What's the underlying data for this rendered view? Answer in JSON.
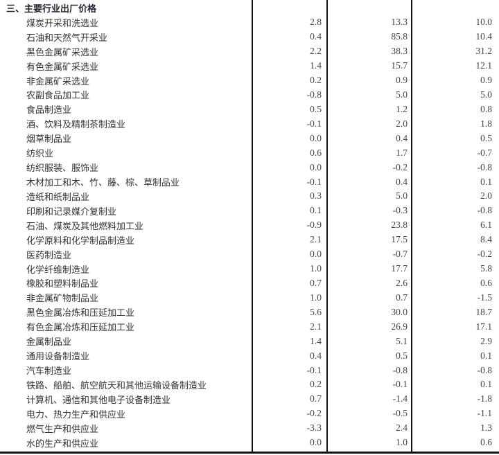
{
  "section_title": "三、主要行业出厂价格",
  "rows": [
    {
      "name": "煤炭开采和洗选业",
      "v1": "2.8",
      "v2": "13.3",
      "v3": "10.0"
    },
    {
      "name": "石油和天然气开采业",
      "v1": "0.4",
      "v2": "85.8",
      "v3": "10.4"
    },
    {
      "name": "黑色金属矿采选业",
      "v1": "2.2",
      "v2": "38.3",
      "v3": "31.2"
    },
    {
      "name": "有色金属矿采选业",
      "v1": "1.4",
      "v2": "15.7",
      "v3": "12.1"
    },
    {
      "name": "非金属矿采选业",
      "v1": "0.2",
      "v2": "0.9",
      "v3": "0.9"
    },
    {
      "name": "农副食品加工业",
      "v1": "-0.8",
      "v2": "5.0",
      "v3": "5.0"
    },
    {
      "name": "食品制造业",
      "v1": "0.5",
      "v2": "1.2",
      "v3": "0.8"
    },
    {
      "name": "酒、饮料及精制茶制造业",
      "v1": "-0.1",
      "v2": "2.0",
      "v3": "1.8"
    },
    {
      "name": "烟草制品业",
      "v1": "0.0",
      "v2": "0.4",
      "v3": "0.5"
    },
    {
      "name": "纺织业",
      "v1": "0.6",
      "v2": "1.7",
      "v3": "-0.7"
    },
    {
      "name": "纺织服装、服饰业",
      "v1": "0.0",
      "v2": "-0.2",
      "v3": "-0.8"
    },
    {
      "name": "木材加工和木、竹、藤、棕、草制品业",
      "v1": "-0.1",
      "v2": "0.4",
      "v3": "0.1"
    },
    {
      "name": "造纸和纸制品业",
      "v1": "0.3",
      "v2": "5.0",
      "v3": "2.0"
    },
    {
      "name": "印刷和记录媒介复制业",
      "v1": "0.1",
      "v2": "-0.3",
      "v3": "-0.8"
    },
    {
      "name": "石油、煤炭及其他燃料加工业",
      "v1": "-0.9",
      "v2": "23.8",
      "v3": "6.1"
    },
    {
      "name": "化学原料和化学制品制造业",
      "v1": "2.1",
      "v2": "17.5",
      "v3": "8.4"
    },
    {
      "name": "医药制造业",
      "v1": "0.0",
      "v2": "-0.7",
      "v3": "-0.2"
    },
    {
      "name": "化学纤维制造业",
      "v1": "1.0",
      "v2": "17.7",
      "v3": "5.8"
    },
    {
      "name": "橡胶和塑料制品业",
      "v1": "0.7",
      "v2": "2.6",
      "v3": "0.6"
    },
    {
      "name": "非金属矿物制品业",
      "v1": "1.0",
      "v2": "0.7",
      "v3": "-1.5"
    },
    {
      "name": "黑色金属冶炼和压延加工业",
      "v1": "5.6",
      "v2": "30.0",
      "v3": "18.7"
    },
    {
      "name": "有色金属冶炼和压延加工业",
      "v1": "2.1",
      "v2": "26.9",
      "v3": "17.1"
    },
    {
      "name": "金属制品业",
      "v1": "1.4",
      "v2": "5.1",
      "v3": "2.9"
    },
    {
      "name": "通用设备制造业",
      "v1": "0.4",
      "v2": "0.5",
      "v3": "0.1"
    },
    {
      "name": "汽车制造业",
      "v1": "-0.1",
      "v2": "-0.8",
      "v3": "-0.8"
    },
    {
      "name": "铁路、船舶、航空航天和其他运输设备制造业",
      "v1": "0.2",
      "v2": "-0.1",
      "v3": "0.1"
    },
    {
      "name": "计算机、通信和其他电子设备制造业",
      "v1": "0.7",
      "v2": "-1.4",
      "v3": "-1.8"
    },
    {
      "name": "电力、热力生产和供应业",
      "v1": "-0.2",
      "v2": "-0.5",
      "v3": "-1.1"
    },
    {
      "name": "燃气生产和供应业",
      "v1": "-3.3",
      "v2": "2.4",
      "v3": "1.3"
    },
    {
      "name": "水的生产和供应业",
      "v1": "0.0",
      "v2": "1.0",
      "v3": "0.6"
    }
  ]
}
